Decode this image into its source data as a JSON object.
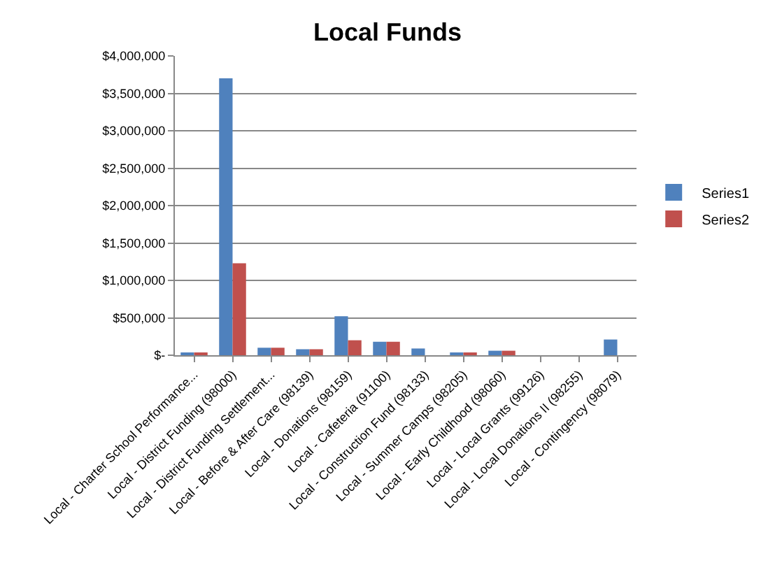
{
  "chart_data": {
    "type": "bar",
    "title": "Local Funds",
    "categories": [
      "Local - Charter School Performance...",
      "Local - District Funding (98000)",
      "Local - District Funding Settlement...",
      "Local - Before & After Care (98139)",
      "Local - Donations (98159)",
      "Local - Cafeteria (91100)",
      "Local - Construction Fund (98133)",
      "Local - Summer Camps (98205)",
      "Local - Early Childhood (98060)",
      "Local - Local Grants (99126)",
      "Local - Local Donations II (98255)",
      "Local - Contingency (98079)"
    ],
    "series": [
      {
        "name": "Series1",
        "color": "#4f81bd",
        "values": [
          30000,
          3700000,
          100000,
          80000,
          520000,
          180000,
          90000,
          30000,
          60000,
          0,
          0,
          210000
        ]
      },
      {
        "name": "Series2",
        "color": "#c0504d",
        "values": [
          30000,
          1230000,
          100000,
          80000,
          200000,
          180000,
          0,
          30000,
          60000,
          0,
          0,
          0
        ]
      }
    ],
    "ylim": [
      0,
      4000000
    ],
    "yticks": [
      {
        "value": 0,
        "label": "$-"
      },
      {
        "value": 500000,
        "label": "$500,000"
      },
      {
        "value": 1000000,
        "label": "$1,000,000"
      },
      {
        "value": 1500000,
        "label": "$1,500,000"
      },
      {
        "value": 2000000,
        "label": "$2,000,000"
      },
      {
        "value": 2500000,
        "label": "$2,500,000"
      },
      {
        "value": 3000000,
        "label": "$3,000,000"
      },
      {
        "value": 3500000,
        "label": "$3,500,000"
      },
      {
        "value": 4000000,
        "label": "$4,000,000"
      }
    ],
    "grid": "y",
    "legend": "right"
  }
}
